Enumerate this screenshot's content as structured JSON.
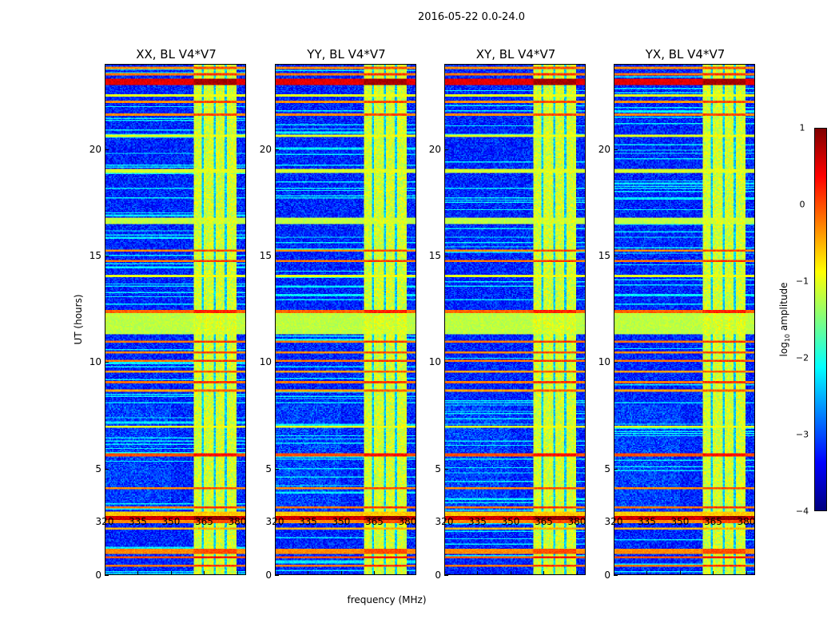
{
  "chart_data": {
    "type": "heatmap",
    "title": "2016-05-22 0.0-24.0",
    "xlabel": "frequency (MHz)",
    "ylabel": "UT (hours)",
    "xlim": [
      320,
      384
    ],
    "ylim": [
      0,
      24
    ],
    "xticks": [
      "320",
      "335",
      "350",
      "365",
      "380"
    ],
    "xtick_values": [
      320,
      335,
      350,
      365,
      380
    ],
    "yticks": [
      "0",
      "5",
      "10",
      "15",
      "20"
    ],
    "ytick_values": [
      0,
      5,
      10,
      15,
      20
    ],
    "panels": [
      {
        "title": "XX, BL V4*V7",
        "seed": 1
      },
      {
        "title": "YY, BL V4*V7",
        "seed": 2
      },
      {
        "title": "XY, BL V4*V7",
        "seed": 3
      },
      {
        "title": "YX, BL V4*V7",
        "seed": 4
      }
    ],
    "colormap": "jet",
    "clim": [
      -4,
      1
    ],
    "colorbar": {
      "label_log": "log",
      "label_sub": "10",
      "label_rest": " amplitude",
      "ticks": [
        "1",
        "0",
        "−1",
        "−2",
        "−3",
        "−4"
      ],
      "tick_values": [
        1,
        0,
        -1,
        -2,
        -3,
        -4
      ]
    },
    "background_level": -3.2,
    "rfi_band_mhz": [
      360.5,
      380
    ],
    "rfi_band_level": -1.1,
    "rfi_subband_gaps_mhz": [
      364.5,
      370,
      375
    ],
    "rfi_rows": [
      {
        "t0": 0.35,
        "t1": 0.45,
        "level": -0.2
      },
      {
        "t0": 0.75,
        "t1": 0.85,
        "level": 0.0
      },
      {
        "t0": 0.95,
        "t1": 1.2,
        "level": -0.3
      },
      {
        "t0": 2.1,
        "t1": 2.2,
        "level": -0.5
      },
      {
        "t0": 2.4,
        "t1": 2.55,
        "level": -0.3
      },
      {
        "t0": 2.55,
        "t1": 2.75,
        "level": 0.6
      },
      {
        "t0": 2.75,
        "t1": 2.95,
        "level": -0.6
      },
      {
        "t0": 3.1,
        "t1": 3.2,
        "level": -0.2
      },
      {
        "t0": 4.0,
        "t1": 4.1,
        "level": -0.3
      },
      {
        "t0": 5.55,
        "t1": 5.7,
        "level": 0.0
      },
      {
        "t0": 6.9,
        "t1": 7.0,
        "level": -1.0
      },
      {
        "t0": 8.6,
        "t1": 8.7,
        "level": -0.4
      },
      {
        "t0": 9.0,
        "t1": 9.1,
        "level": -0.2
      },
      {
        "t0": 9.5,
        "t1": 9.6,
        "level": -0.4
      },
      {
        "t0": 10.0,
        "t1": 10.1,
        "level": -0.2
      },
      {
        "t0": 10.4,
        "t1": 10.5,
        "level": -0.3
      },
      {
        "t0": 10.9,
        "t1": 11.0,
        "level": -0.2
      },
      {
        "t0": 11.3,
        "t1": 12.3,
        "level": -1.2
      },
      {
        "t0": 12.3,
        "t1": 12.45,
        "level": -0.1
      },
      {
        "t0": 14.0,
        "t1": 14.1,
        "level": -1.0
      },
      {
        "t0": 14.7,
        "t1": 14.8,
        "level": -0.2
      },
      {
        "t0": 15.2,
        "t1": 15.3,
        "level": -0.3
      },
      {
        "t0": 16.5,
        "t1": 16.8,
        "level": -1.2
      },
      {
        "t0": 18.9,
        "t1": 19.1,
        "level": -1.1
      },
      {
        "t0": 20.6,
        "t1": 20.7,
        "level": -1.0
      },
      {
        "t0": 21.6,
        "t1": 21.7,
        "level": -0.3
      },
      {
        "t0": 22.2,
        "t1": 22.3,
        "level": -0.3
      },
      {
        "t0": 22.5,
        "t1": 22.6,
        "level": -1.0
      },
      {
        "t0": 23.05,
        "t1": 23.35,
        "level": 0.5
      },
      {
        "t0": 23.5,
        "t1": 23.6,
        "level": -0.2
      },
      {
        "t0": 23.8,
        "t1": 23.9,
        "level": -0.3
      }
    ]
  }
}
